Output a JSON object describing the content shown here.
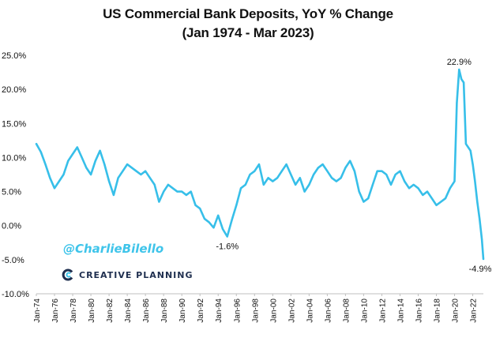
{
  "page": {
    "title_line1": "US Commercial Bank Deposits, YoY % Change",
    "title_line2": "(Jan 1974 - Mar 2023)"
  },
  "watermarks": {
    "handle": "@CharlieBilello",
    "brand": "CREATIVE PLANNING"
  },
  "colors": {
    "series": "#37bfe9",
    "text": "#111111",
    "axis": "#bfbfbf",
    "watermark_handle": "#3ec4ea",
    "watermark_brand": "#1f2f4f"
  },
  "chart_data": {
    "type": "line",
    "title": "US Commercial Bank Deposits, YoY % Change",
    "subtitle": "(Jan 1974 - Mar 2023)",
    "xlabel": "",
    "ylabel": "",
    "grid": false,
    "legend": "none",
    "x_range": [
      "1974-01",
      "2023-03"
    ],
    "ylim": [
      -10.0,
      25.0
    ],
    "y_ticks": [
      -10.0,
      -5.0,
      0.0,
      5.0,
      10.0,
      15.0,
      20.0,
      25.0
    ],
    "y_tick_labels": [
      "-10.0%",
      "-5.0%",
      "0.0%",
      "5.0%",
      "10.0%",
      "15.0%",
      "20.0%",
      "25.0%"
    ],
    "x_ticks": [
      "1974-01",
      "1976-01",
      "1978-01",
      "1980-01",
      "1982-01",
      "1984-01",
      "1986-01",
      "1988-01",
      "1990-01",
      "1992-01",
      "1994-01",
      "1996-01",
      "1998-01",
      "2000-01",
      "2002-01",
      "2004-01",
      "2006-01",
      "2008-01",
      "2010-01",
      "2012-01",
      "2014-01",
      "2016-01",
      "2018-01",
      "2020-01",
      "2022-01"
    ],
    "x_tick_labels": [
      "Jan-74",
      "Jan-76",
      "Jan-78",
      "Jan-80",
      "Jan-82",
      "Jan-84",
      "Jan-86",
      "Jan-88",
      "Jan-90",
      "Jan-92",
      "Jan-94",
      "Jan-96",
      "Jan-98",
      "Jan-00",
      "Jan-02",
      "Jan-04",
      "Jan-06",
      "Jan-08",
      "Jan-10",
      "Jan-12",
      "Jan-14",
      "Jan-16",
      "Jan-18",
      "Jan-20",
      "Jan-22"
    ],
    "series": [
      {
        "color": "#37bfe9",
        "x": [
          "1974-01",
          "1974-07",
          "1975-01",
          "1975-07",
          "1976-01",
          "1976-07",
          "1977-01",
          "1977-07",
          "1978-01",
          "1978-07",
          "1979-01",
          "1979-07",
          "1980-01",
          "1980-07",
          "1981-01",
          "1981-07",
          "1982-01",
          "1982-07",
          "1983-01",
          "1983-07",
          "1984-01",
          "1984-07",
          "1985-01",
          "1985-07",
          "1986-01",
          "1986-07",
          "1987-01",
          "1987-07",
          "1988-01",
          "1988-07",
          "1989-01",
          "1989-07",
          "1990-01",
          "1990-07",
          "1991-01",
          "1991-07",
          "1992-01",
          "1992-07",
          "1993-01",
          "1993-07",
          "1994-01",
          "1994-07",
          "1995-01",
          "1995-07",
          "1996-01",
          "1996-07",
          "1997-01",
          "1997-07",
          "1998-01",
          "1998-07",
          "1999-01",
          "1999-07",
          "2000-01",
          "2000-07",
          "2001-01",
          "2001-07",
          "2002-01",
          "2002-07",
          "2003-01",
          "2003-07",
          "2004-01",
          "2004-07",
          "2005-01",
          "2005-07",
          "2006-01",
          "2006-07",
          "2007-01",
          "2007-07",
          "2008-01",
          "2008-07",
          "2009-01",
          "2009-07",
          "2010-01",
          "2010-07",
          "2011-01",
          "2011-07",
          "2012-01",
          "2012-07",
          "2013-01",
          "2013-07",
          "2014-01",
          "2014-07",
          "2015-01",
          "2015-07",
          "2016-01",
          "2016-07",
          "2017-01",
          "2017-07",
          "2018-01",
          "2018-07",
          "2019-01",
          "2019-07",
          "2020-01",
          "2020-04",
          "2020-07",
          "2020-10",
          "2021-01",
          "2021-04",
          "2021-07",
          "2021-10",
          "2022-01",
          "2022-04",
          "2022-07",
          "2022-10",
          "2023-01",
          "2023-03"
        ],
        "values": [
          12.0,
          10.8,
          9.0,
          7.0,
          5.5,
          6.5,
          7.5,
          9.5,
          10.5,
          11.5,
          10.0,
          8.5,
          7.5,
          9.5,
          11.0,
          9.0,
          6.5,
          4.5,
          7.0,
          8.0,
          9.0,
          8.5,
          8.0,
          7.5,
          8.0,
          7.0,
          6.0,
          3.5,
          5.0,
          6.0,
          5.5,
          5.0,
          5.0,
          4.5,
          5.0,
          3.0,
          2.5,
          1.0,
          0.5,
          -0.3,
          1.5,
          -0.5,
          -1.6,
          0.8,
          3.0,
          5.5,
          6.0,
          7.5,
          8.0,
          9.0,
          6.0,
          7.0,
          6.5,
          7.0,
          8.0,
          9.0,
          7.5,
          6.0,
          7.0,
          5.0,
          6.0,
          7.5,
          8.5,
          9.0,
          8.0,
          7.0,
          6.5,
          7.0,
          8.5,
          9.5,
          8.0,
          5.0,
          3.5,
          4.0,
          6.0,
          8.0,
          8.0,
          7.5,
          6.0,
          7.5,
          8.0,
          6.5,
          5.5,
          6.0,
          5.5,
          4.5,
          5.0,
          4.0,
          3.0,
          3.5,
          4.0,
          5.5,
          6.5,
          18.0,
          22.9,
          21.5,
          21.0,
          12.0,
          11.5,
          11.0,
          9.0,
          6.5,
          3.5,
          1.0,
          -2.0,
          -4.9
        ]
      }
    ],
    "annotations": [
      {
        "label": "22.9%",
        "x": "2020-07",
        "y": 22.9
      },
      {
        "label": "-1.6%",
        "x": "1995-01",
        "y": -1.6
      },
      {
        "label": "-4.9%",
        "x": "2023-03",
        "y": -4.9
      }
    ]
  }
}
